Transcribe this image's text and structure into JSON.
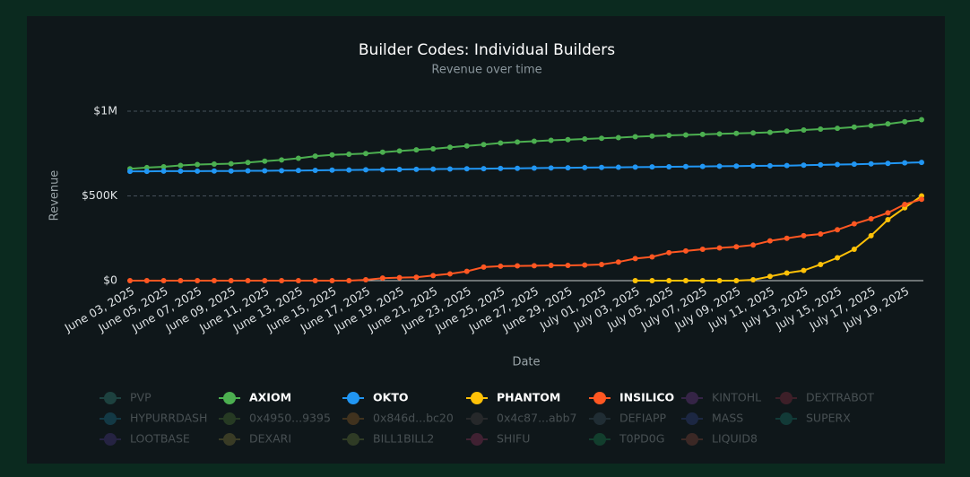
{
  "chart_data": {
    "type": "line",
    "title": "Builder Codes: Individual Builders",
    "subtitle": "Revenue over time",
    "x_label": "Date",
    "y_label": "Revenue",
    "x": [
      "2025-06-03",
      "2025-06-04",
      "2025-06-05",
      "2025-06-06",
      "2025-06-07",
      "2025-06-08",
      "2025-06-09",
      "2025-06-10",
      "2025-06-11",
      "2025-06-12",
      "2025-06-13",
      "2025-06-14",
      "2025-06-15",
      "2025-06-16",
      "2025-06-17",
      "2025-06-18",
      "2025-06-19",
      "2025-06-20",
      "2025-06-21",
      "2025-06-22",
      "2025-06-23",
      "2025-06-24",
      "2025-06-25",
      "2025-06-26",
      "2025-06-27",
      "2025-06-28",
      "2025-06-29",
      "2025-06-30",
      "2025-07-01",
      "2025-07-02",
      "2025-07-03",
      "2025-07-04",
      "2025-07-05",
      "2025-07-06",
      "2025-07-07",
      "2025-07-08",
      "2025-07-09",
      "2025-07-10",
      "2025-07-11",
      "2025-07-12",
      "2025-07-13",
      "2025-07-14",
      "2025-07-15",
      "2025-07-16",
      "2025-07-17",
      "2025-07-18",
      "2025-07-19",
      "2025-07-20"
    ],
    "xticks": [
      {
        "value": "2025-06-03",
        "label": "June 03, 2025"
      },
      {
        "value": "2025-06-05",
        "label": "June 05, 2025"
      },
      {
        "value": "2025-06-07",
        "label": "June 07, 2025"
      },
      {
        "value": "2025-06-09",
        "label": "June 09, 2025"
      },
      {
        "value": "2025-06-11",
        "label": "June 11, 2025"
      },
      {
        "value": "2025-06-13",
        "label": "June 13, 2025"
      },
      {
        "value": "2025-06-15",
        "label": "June 15, 2025"
      },
      {
        "value": "2025-06-17",
        "label": "June 17, 2025"
      },
      {
        "value": "2025-06-19",
        "label": "June 19, 2025"
      },
      {
        "value": "2025-06-21",
        "label": "June 21, 2025"
      },
      {
        "value": "2025-06-23",
        "label": "June 23, 2025"
      },
      {
        "value": "2025-06-25",
        "label": "June 25, 2025"
      },
      {
        "value": "2025-06-27",
        "label": "June 27, 2025"
      },
      {
        "value": "2025-06-29",
        "label": "June 29, 2025"
      },
      {
        "value": "2025-07-01",
        "label": "July 01, 2025"
      },
      {
        "value": "2025-07-03",
        "label": "July 03, 2025"
      },
      {
        "value": "2025-07-05",
        "label": "July 05, 2025"
      },
      {
        "value": "2025-07-07",
        "label": "July 07, 2025"
      },
      {
        "value": "2025-07-09",
        "label": "July 09, 2025"
      },
      {
        "value": "2025-07-11",
        "label": "July 11, 2025"
      },
      {
        "value": "2025-07-13",
        "label": "July 13, 2025"
      },
      {
        "value": "2025-07-15",
        "label": "July 15, 2025"
      },
      {
        "value": "2025-07-17",
        "label": "July 17, 2025"
      },
      {
        "value": "2025-07-19",
        "label": "July 19, 2025"
      }
    ],
    "ylim": [
      0,
      1050000
    ],
    "yticks": [
      {
        "value": 0,
        "label": "$0"
      },
      {
        "value": 500000,
        "label": "$500K"
      },
      {
        "value": 1000000,
        "label": "$1M"
      }
    ],
    "grid": true,
    "series": [
      {
        "name": "PVP",
        "color": "#3fa394",
        "visible": false
      },
      {
        "name": "AXIOM",
        "color": "#4caf50",
        "values": [
          660000,
          667000,
          672000,
          680000,
          685000,
          688000,
          690000,
          697000,
          705000,
          712000,
          722000,
          735000,
          742000,
          746000,
          750000,
          758000,
          765000,
          772000,
          778000,
          787000,
          795000,
          803000,
          812000,
          818000,
          823000,
          828000,
          832000,
          836000,
          840000,
          844000,
          849000,
          853000,
          857000,
          860000,
          863000,
          866000,
          869000,
          872000,
          875000,
          882000,
          889000,
          894000,
          899000,
          906000,
          915000,
          925000,
          938000,
          950000
        ]
      },
      {
        "name": "OKTO",
        "color": "#2196f3",
        "values": [
          645000,
          645000,
          646000,
          646000,
          646000,
          647000,
          647000,
          648000,
          648000,
          649000,
          650000,
          651000,
          652000,
          653000,
          654000,
          655000,
          656000,
          657000,
          658000,
          659000,
          660000,
          661000,
          662000,
          663000,
          664000,
          665000,
          666000,
          667000,
          668000,
          669000,
          670000,
          671000,
          672000,
          673000,
          674000,
          675000,
          676000,
          677000,
          678000,
          679000,
          681000,
          683000,
          685000,
          687000,
          689000,
          692000,
          695000,
          698000
        ]
      },
      {
        "name": "PHANTOM",
        "color": "#ffc107",
        "values": [
          null,
          null,
          null,
          null,
          null,
          null,
          null,
          null,
          null,
          null,
          null,
          null,
          null,
          null,
          null,
          null,
          null,
          null,
          null,
          null,
          null,
          null,
          null,
          null,
          null,
          null,
          null,
          null,
          null,
          null,
          0,
          0,
          0,
          0,
          0,
          0,
          0,
          5000,
          25000,
          45000,
          60000,
          95000,
          135000,
          185000,
          265000,
          360000,
          430000,
          500000
        ]
      },
      {
        "name": "INSILICO",
        "color": "#ff5722",
        "values": [
          0,
          0,
          0,
          0,
          0,
          0,
          0,
          0,
          0,
          0,
          0,
          0,
          0,
          0,
          5000,
          15000,
          18000,
          20000,
          30000,
          40000,
          55000,
          80000,
          85000,
          87000,
          88000,
          90000,
          90000,
          92000,
          95000,
          110000,
          130000,
          140000,
          165000,
          175000,
          185000,
          193000,
          200000,
          210000,
          235000,
          250000,
          265000,
          275000,
          300000,
          335000,
          365000,
          400000,
          450000,
          480000
        ]
      },
      {
        "name": "KINTOHL",
        "color": "#8e44ad",
        "visible": false
      },
      {
        "name": "DEXTRABOT",
        "color": "#a8324a",
        "visible": false
      },
      {
        "name": "HYPURRDASH",
        "color": "#1e88a8",
        "visible": false
      },
      {
        "name": "0x4950...9395",
        "color": "#5b8c3a",
        "visible": false
      },
      {
        "name": "0x846d...bc20",
        "color": "#b0702a",
        "visible": false
      },
      {
        "name": "0x4c87...abb7",
        "color": "#5c5050",
        "visible": false
      },
      {
        "name": "DEFIAPP",
        "color": "#4a6070",
        "visible": false
      },
      {
        "name": "MASS",
        "color": "#3a4ea0",
        "visible": false
      },
      {
        "name": "SUPERX",
        "color": "#1a8a7a",
        "visible": false
      },
      {
        "name": "LOOTBASE",
        "color": "#5a40a0",
        "visible": false
      },
      {
        "name": "DEXARI",
        "color": "#9a9040",
        "visible": false
      },
      {
        "name": "BILL1BILL2",
        "color": "#7a9040",
        "visible": false
      },
      {
        "name": "SHIFU",
        "color": "#b03a6a",
        "visible": false
      },
      {
        "name": "T0PD0G",
        "color": "#1a9a5a",
        "visible": false
      },
      {
        "name": "LIQUID8",
        "color": "#a05040",
        "visible": false
      }
    ]
  }
}
